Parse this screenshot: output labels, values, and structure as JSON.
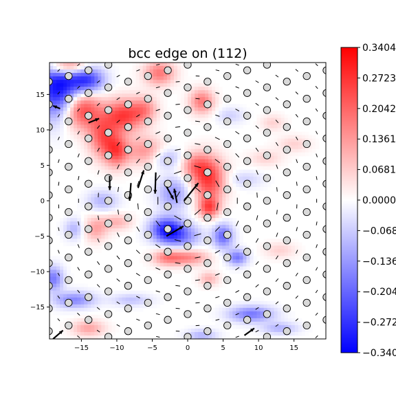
{
  "chart_data": {
    "type": "heatmap",
    "title": "bcc edge on (112)",
    "xlabel": "",
    "ylabel": "",
    "xlim": [
      -19.5,
      19.5
    ],
    "ylim": [
      -19.5,
      19.5
    ],
    "x_ticks": [
      -15,
      -10,
      -5,
      0,
      5,
      10,
      15
    ],
    "y_ticks": [
      -15,
      -10,
      -5,
      0,
      5,
      10,
      15
    ],
    "grid": false,
    "colormap": "bwr",
    "colors": {
      "negative": "#0000ff",
      "zero": "#ffffff",
      "positive": "#ff0000",
      "atom_fill": "#d9d9d9",
      "atom_edge": "#000000"
    },
    "colorbar": {
      "vmin": -0.3404,
      "vmax": 0.3404,
      "tick_values": [
        0.3404,
        0.2723,
        0.2042,
        0.1361,
        0.0681,
        0.0,
        -0.0681,
        -0.1361,
        -0.2042,
        -0.2723,
        -0.3404
      ],
      "tick_labels": [
        "0.3404",
        "0.2723",
        "0.2042",
        "0.1361",
        "0.0681",
        "0.0000",
        "-0.068",
        "-0.136",
        "-0.204",
        "-0.272",
        "-0.340"
      ]
    },
    "lattice": {
      "a1": [
        2.8,
        0.8
      ],
      "a2": [
        0.0,
        3.2
      ],
      "a3": [
        1.4,
        1.6
      ],
      "origin": [
        0.0,
        0.0
      ]
    },
    "field_blobs": [
      {
        "x": -18,
        "y": 16,
        "amp": -0.34,
        "sx": 2.5,
        "sy": 3.0
      },
      {
        "x": -14,
        "y": 17,
        "amp": -0.22,
        "sx": 1.6,
        "sy": 1.3
      },
      {
        "x": -15,
        "y": 13,
        "amp": 0.3,
        "sx": 1.8,
        "sy": 2.0
      },
      {
        "x": -17,
        "y": 19,
        "amp": 0.28,
        "sx": 2.0,
        "sy": 0.9
      },
      {
        "x": -9,
        "y": 12,
        "amp": 0.26,
        "sx": 2.0,
        "sy": 1.6
      },
      {
        "x": -12,
        "y": 9,
        "amp": 0.2,
        "sx": 1.4,
        "sy": 2.0
      },
      {
        "x": -10,
        "y": 7,
        "amp": 0.22,
        "sx": 1.2,
        "sy": 1.6
      },
      {
        "x": -6,
        "y": 7,
        "amp": 0.14,
        "sx": 1.8,
        "sy": 1.4
      },
      {
        "x": -4,
        "y": 18,
        "amp": 0.18,
        "sx": 1.5,
        "sy": 1.2
      },
      {
        "x": -6,
        "y": 13,
        "amp": 0.12,
        "sx": 1.2,
        "sy": 1.2
      },
      {
        "x": 3,
        "y": 3,
        "amp": 0.26,
        "sx": 1.6,
        "sy": 2.2
      },
      {
        "x": 3,
        "y": -1,
        "amp": 0.22,
        "sx": 1.0,
        "sy": 1.0
      },
      {
        "x": 1,
        "y": 5,
        "amp": 0.14,
        "sx": 1.4,
        "sy": 1.3
      },
      {
        "x": 2,
        "y": 14,
        "amp": 0.18,
        "sx": 1.2,
        "sy": 1.2
      },
      {
        "x": -3,
        "y": -4,
        "amp": -0.26,
        "sx": 1.6,
        "sy": 1.2
      },
      {
        "x": -1,
        "y": -5,
        "amp": -0.16,
        "sx": 2.0,
        "sy": 1.2
      },
      {
        "x": -2,
        "y": 1,
        "amp": -0.14,
        "sx": 1.6,
        "sy": 1.6
      },
      {
        "x": -3,
        "y": 6,
        "amp": -0.1,
        "sx": 1.6,
        "sy": 1.0
      },
      {
        "x": 5,
        "y": -5,
        "amp": -0.2,
        "sx": 1.0,
        "sy": 1.2
      },
      {
        "x": 7,
        "y": -8,
        "amp": -0.18,
        "sx": 1.0,
        "sy": 0.8
      },
      {
        "x": 0,
        "y": -8,
        "amp": 0.16,
        "sx": 2.0,
        "sy": 0.8
      },
      {
        "x": -3,
        "y": -8,
        "amp": 0.14,
        "sx": 1.4,
        "sy": 0.8
      },
      {
        "x": -13,
        "y": -4,
        "amp": 0.12,
        "sx": 1.2,
        "sy": 1.2
      },
      {
        "x": -10,
        "y": -3,
        "amp": 0.1,
        "sx": 1.5,
        "sy": 0.8
      },
      {
        "x": -12,
        "y": 0,
        "amp": -0.1,
        "sx": 1.5,
        "sy": 1.0
      },
      {
        "x": -16,
        "y": -4,
        "amp": -0.1,
        "sx": 1.0,
        "sy": 1.0
      },
      {
        "x": 3,
        "y": -11,
        "amp": 0.1,
        "sx": 1.0,
        "sy": 0.7
      },
      {
        "x": -19,
        "y": -11,
        "amp": -0.18,
        "sx": 1.0,
        "sy": 1.2
      },
      {
        "x": -16,
        "y": -14,
        "amp": -0.16,
        "sx": 2.0,
        "sy": 0.8
      },
      {
        "x": -14,
        "y": -18,
        "amp": 0.12,
        "sx": 1.6,
        "sy": 0.8
      },
      {
        "x": -8,
        "y": -14,
        "amp": -0.08,
        "sx": 2.0,
        "sy": 0.6
      },
      {
        "x": 9,
        "y": -16,
        "amp": -0.18,
        "sx": 2.2,
        "sy": 0.8
      },
      {
        "x": 13,
        "y": -18,
        "amp": -0.1,
        "sx": 1.8,
        "sy": 0.6
      },
      {
        "x": 2,
        "y": -19,
        "amp": -0.1,
        "sx": 1.5,
        "sy": 0.6
      },
      {
        "x": 8,
        "y": 3,
        "amp": -0.06,
        "sx": 1.8,
        "sy": 0.8
      },
      {
        "x": 11,
        "y": 6,
        "amp": 0.06,
        "sx": 1.6,
        "sy": 0.8
      },
      {
        "x": 15,
        "y": 8,
        "amp": 0.06,
        "sx": 1.6,
        "sy": 0.8
      },
      {
        "x": 13,
        "y": -7,
        "amp": 0.06,
        "sx": 1.6,
        "sy": 0.8
      },
      {
        "x": 6,
        "y": 12,
        "amp": -0.06,
        "sx": 1.4,
        "sy": 0.8
      },
      {
        "x": 12,
        "y": 11,
        "amp": 0.06,
        "sx": 1.2,
        "sy": 0.8
      }
    ],
    "large_arrows": [
      {
        "x": -11,
        "y": 3.5,
        "dx": 0.0,
        "dy": -2.0
      },
      {
        "x": -8,
        "y": 2.5,
        "dx": -0.2,
        "dy": -2.5
      },
      {
        "x": -4.5,
        "y": 4,
        "dx": -0.1,
        "dy": -3.0
      },
      {
        "x": -7,
        "y": 1.8,
        "dx": 0.8,
        "dy": 2.5
      },
      {
        "x": -3,
        "y": 2.0,
        "dx": 1.0,
        "dy": -1.8
      },
      {
        "x": -1.5,
        "y": -0.3,
        "dx": -0.4,
        "dy": 2.0
      },
      {
        "x": -0.5,
        "y": 0.0,
        "dx": 2.0,
        "dy": 2.5
      },
      {
        "x": -3,
        "y": -5.0,
        "dx": 2.4,
        "dy": 1.4
      },
      {
        "x": -19,
        "y": -19.5,
        "dx": 1.4,
        "dy": 1.2
      },
      {
        "x": -18,
        "y": 13,
        "dx": -1.0,
        "dy": 0.4
      },
      {
        "x": -14,
        "y": 11,
        "dx": 1.5,
        "dy": 0.6
      },
      {
        "x": 8,
        "y": -19,
        "dx": 1.4,
        "dy": 1.0
      }
    ]
  }
}
